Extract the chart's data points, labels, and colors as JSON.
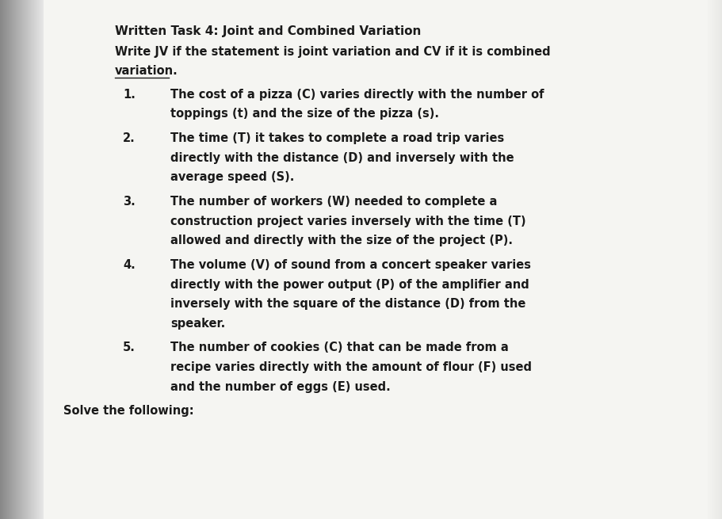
{
  "background_color": "#e8e8e8",
  "paper_color": "#f5f5f2",
  "text_color": "#1a1a1a",
  "title": "Written Task 4: Joint and Combined Variation",
  "subtitle": "Write JV if the statement is joint variation and CV if it is combined",
  "subtitle2": "variation.",
  "items": [
    {
      "num": "1.",
      "lines": [
        "The cost of a pizza (C) varies directly with the number of",
        "toppings (t) and the size of the pizza (s)."
      ]
    },
    {
      "num": "2.",
      "lines": [
        "The time (T) it takes to complete a road trip varies",
        "directly with the distance (D) and inversely with the",
        "average speed (S)."
      ]
    },
    {
      "num": "3.",
      "lines": [
        "The number of workers (W) needed to complete a",
        "construction project varies inversely with the time (T)",
        "allowed and directly with the size of the project (P)."
      ]
    },
    {
      "num": "4.",
      "lines": [
        "The volume (V) of sound from a concert speaker varies",
        "directly with the power output (P) of the amplifier and",
        "inversely with the square of the distance (D) from the",
        "speaker."
      ]
    },
    {
      "num": "5.",
      "lines": [
        "The number of cookies (C) that can be made from a",
        "recipe varies directly with the amount of flour (F) used",
        "and the number of eggs (E) used."
      ]
    }
  ],
  "footer": "Solve the following:",
  "title_fontsize": 11.0,
  "body_fontsize": 10.5,
  "left_edge_width": 0.07
}
